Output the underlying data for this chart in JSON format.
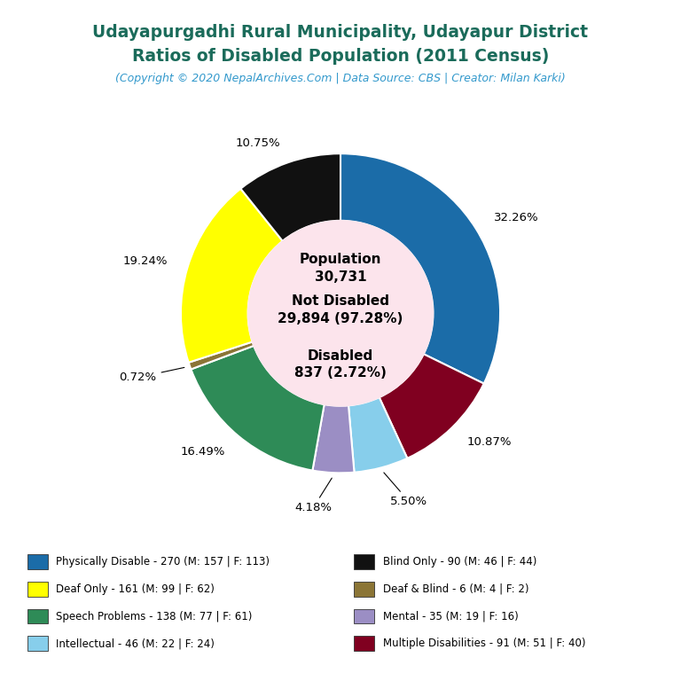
{
  "title_line1": "Udayapurgadhi Rural Municipality, Udayapur District",
  "title_line2": "Ratios of Disabled Population (2011 Census)",
  "title_color": "#1a6b5a",
  "subtitle": "(Copyright © 2020 NepalArchives.Com | Data Source: CBS | Creator: Milan Karki)",
  "subtitle_color": "#3399cc",
  "background_color": "#ffffff",
  "center_bg": "#fce4ec",
  "slices": [
    {
      "label": "Physically Disable - 270 (M: 157 | F: 113)",
      "value": 270,
      "pct": "32.26%",
      "color": "#1b6ca8"
    },
    {
      "label": "Multiple Disabilities - 91 (M: 51 | F: 40)",
      "value": 91,
      "pct": "10.87%",
      "color": "#800020"
    },
    {
      "label": "Intellectual - 46 (M: 22 | F: 24)",
      "value": 46,
      "pct": "5.50%",
      "color": "#87ceeb"
    },
    {
      "label": "Mental - 35 (M: 19 | F: 16)",
      "value": 35,
      "pct": "4.18%",
      "color": "#9b8ec4"
    },
    {
      "label": "Speech Problems - 138 (M: 77 | F: 61)",
      "value": 138,
      "pct": "16.49%",
      "color": "#2e8b57"
    },
    {
      "label": "Deaf & Blind - 6 (M: 4 | F: 2)",
      "value": 6,
      "pct": "0.72%",
      "color": "#8b7536"
    },
    {
      "label": "Deaf Only - 161 (M: 99 | F: 62)",
      "value": 161,
      "pct": "19.24%",
      "color": "#ffff00"
    },
    {
      "label": "Blind Only - 90 (M: 46 | F: 44)",
      "value": 90,
      "pct": "10.75%",
      "color": "#111111"
    }
  ],
  "legend_items": [
    {
      "label": "Physically Disable - 270 (M: 157 | F: 113)",
      "color": "#1b6ca8"
    },
    {
      "label": "Deaf Only - 161 (M: 99 | F: 62)",
      "color": "#ffff00"
    },
    {
      "label": "Speech Problems - 138 (M: 77 | F: 61)",
      "color": "#2e8b57"
    },
    {
      "label": "Intellectual - 46 (M: 22 | F: 24)",
      "color": "#87ceeb"
    },
    {
      "label": "Blind Only - 90 (M: 46 | F: 44)",
      "color": "#111111"
    },
    {
      "label": "Deaf & Blind - 6 (M: 4 | F: 2)",
      "color": "#8b7536"
    },
    {
      "label": "Mental - 35 (M: 19 | F: 16)",
      "color": "#9b8ec4"
    },
    {
      "label": "Multiple Disabilities - 91 (M: 51 | F: 40)",
      "color": "#800020"
    }
  ]
}
